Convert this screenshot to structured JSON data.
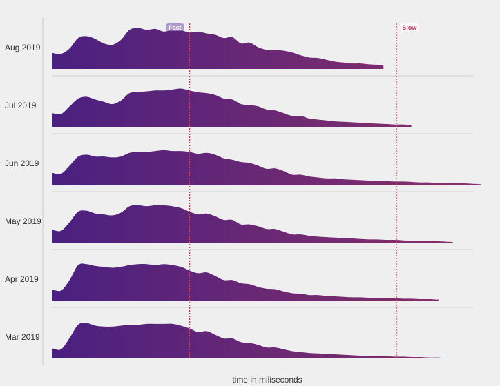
{
  "chart_data": {
    "type": "area",
    "subtype": "ridgeline",
    "xlabel": "time in miliseconds",
    "x_domain": [
      0,
      100
    ],
    "y_domain": [
      0,
      1
    ],
    "x": [
      0,
      2,
      4,
      6,
      8,
      10,
      12,
      14,
      16,
      18,
      20,
      22,
      24,
      26,
      28,
      30,
      32,
      34,
      36,
      38,
      40,
      42,
      44,
      46,
      48,
      50,
      52,
      54,
      56,
      58,
      60,
      62,
      64,
      66,
      68,
      70,
      72,
      74,
      76,
      78,
      80,
      82,
      84,
      86,
      88,
      90,
      92,
      94,
      96,
      98,
      100
    ],
    "markers": [
      {
        "label": "Fast",
        "x": 32,
        "color": "#d13a5c",
        "label_side": "left"
      },
      {
        "label": "Slow",
        "x": 80.3,
        "color": "#d13a5c",
        "label_side": "right"
      }
    ],
    "gradient": [
      "#4a2080",
      "#8a3068"
    ],
    "series": [
      {
        "name": "Aug 2019",
        "max_x": 77.3,
        "values": [
          0.35,
          0.33,
          0.45,
          0.68,
          0.72,
          0.66,
          0.56,
          0.53,
          0.64,
          0.86,
          0.9,
          0.86,
          0.88,
          0.82,
          0.86,
          0.85,
          0.8,
          0.82,
          0.78,
          0.75,
          0.68,
          0.7,
          0.56,
          0.58,
          0.48,
          0.42,
          0.42,
          0.4,
          0.36,
          0.3,
          0.25,
          0.24,
          0.2,
          0.16,
          0.14,
          0.12,
          0.12,
          0.1,
          0.09,
          0.08,
          0.06,
          0.05,
          0.04,
          0.04,
          0.03,
          0.02,
          0.01,
          0.01,
          0,
          0,
          0
        ]
      },
      {
        "name": "Jul 2019",
        "max_x": 83.8,
        "values": [
          0.3,
          0.28,
          0.45,
          0.62,
          0.66,
          0.6,
          0.55,
          0.5,
          0.58,
          0.74,
          0.76,
          0.78,
          0.8,
          0.8,
          0.82,
          0.84,
          0.8,
          0.76,
          0.74,
          0.7,
          0.62,
          0.6,
          0.5,
          0.48,
          0.45,
          0.38,
          0.36,
          0.3,
          0.24,
          0.24,
          0.18,
          0.16,
          0.14,
          0.12,
          0.11,
          0.1,
          0.09,
          0.08,
          0.07,
          0.06,
          0.05,
          0.05,
          0.04,
          0.03,
          0.02,
          0.01,
          0,
          0,
          0,
          0,
          0
        ]
      },
      {
        "name": "Jun 2019",
        "max_x": 100,
        "values": [
          0.26,
          0.24,
          0.42,
          0.62,
          0.66,
          0.62,
          0.62,
          0.6,
          0.62,
          0.7,
          0.72,
          0.72,
          0.74,
          0.76,
          0.74,
          0.74,
          0.72,
          0.68,
          0.7,
          0.66,
          0.58,
          0.55,
          0.5,
          0.48,
          0.42,
          0.35,
          0.36,
          0.3,
          0.22,
          0.22,
          0.18,
          0.16,
          0.14,
          0.14,
          0.12,
          0.11,
          0.1,
          0.09,
          0.08,
          0.08,
          0.07,
          0.07,
          0.06,
          0.05,
          0.05,
          0.04,
          0.04,
          0.03,
          0.03,
          0.02,
          0.01
        ]
      },
      {
        "name": "May 2019",
        "max_x": 93.5,
        "values": [
          0.28,
          0.26,
          0.45,
          0.68,
          0.7,
          0.64,
          0.62,
          0.6,
          0.66,
          0.8,
          0.82,
          0.8,
          0.82,
          0.82,
          0.8,
          0.76,
          0.68,
          0.62,
          0.64,
          0.58,
          0.5,
          0.5,
          0.4,
          0.4,
          0.36,
          0.3,
          0.3,
          0.24,
          0.18,
          0.18,
          0.15,
          0.13,
          0.12,
          0.11,
          0.1,
          0.09,
          0.08,
          0.07,
          0.07,
          0.06,
          0.06,
          0.05,
          0.04,
          0.04,
          0.03,
          0.03,
          0.02,
          0.01,
          0,
          0,
          0
        ]
      },
      {
        "name": "Apr 2019",
        "max_x": 90.2,
        "values": [
          0.24,
          0.22,
          0.45,
          0.78,
          0.8,
          0.76,
          0.74,
          0.72,
          0.74,
          0.78,
          0.8,
          0.8,
          0.78,
          0.8,
          0.78,
          0.74,
          0.66,
          0.6,
          0.62,
          0.54,
          0.45,
          0.45,
          0.38,
          0.36,
          0.3,
          0.26,
          0.25,
          0.2,
          0.16,
          0.15,
          0.12,
          0.12,
          0.1,
          0.09,
          0.08,
          0.07,
          0.07,
          0.06,
          0.06,
          0.05,
          0.05,
          0.04,
          0.04,
          0.03,
          0.03,
          0.02,
          0.01,
          0,
          0,
          0,
          0
        ]
      },
      {
        "name": "Mar 2019",
        "max_x": 93.5,
        "values": [
          0.22,
          0.2,
          0.45,
          0.74,
          0.78,
          0.72,
          0.7,
          0.7,
          0.72,
          0.74,
          0.74,
          0.76,
          0.76,
          0.76,
          0.76,
          0.72,
          0.66,
          0.58,
          0.6,
          0.52,
          0.44,
          0.44,
          0.36,
          0.34,
          0.3,
          0.24,
          0.24,
          0.2,
          0.16,
          0.14,
          0.12,
          0.11,
          0.1,
          0.09,
          0.08,
          0.07,
          0.06,
          0.06,
          0.05,
          0.05,
          0.04,
          0.04,
          0.03,
          0.03,
          0.02,
          0.02,
          0.01,
          0.01,
          0,
          0,
          0
        ]
      }
    ]
  }
}
